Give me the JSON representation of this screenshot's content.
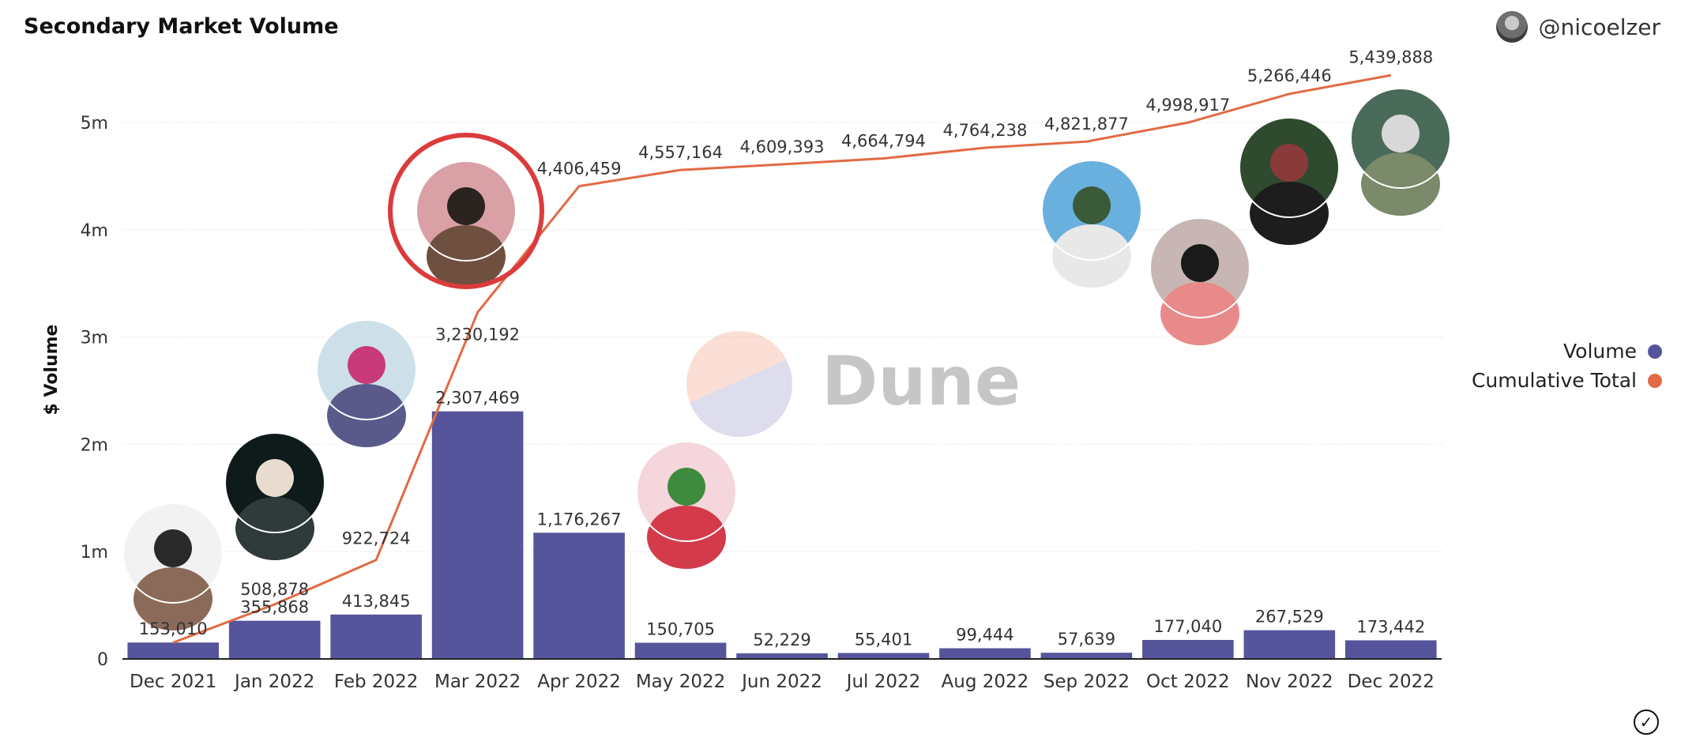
{
  "header": {
    "title": "Secondary Market Volume",
    "author": "@nicoelzer"
  },
  "watermark": "Dune",
  "legend": {
    "volume": "Volume",
    "cumulative": "Cumulative Total"
  },
  "colors": {
    "volume": "#56549a",
    "cumulative": "#e26a45",
    "highlight": "#dc3b3b"
  },
  "artist_photos": [
    {
      "month": "Dec 2021",
      "icon": "artist-photo-curly-hair"
    },
    {
      "month": "Jan 2022",
      "icon": "artist-photo-dark-portrait"
    },
    {
      "month": "Feb 2022",
      "icon": "artist-photo-cyclist-art"
    },
    {
      "month": "Mar 2022",
      "icon": "artist-photo-sunglasses",
      "highlighted": true
    },
    {
      "month": "May 2022",
      "icon": "artist-photo-cartoon-art"
    },
    {
      "month": "Sep 2022",
      "icon": "artist-photo-plaid-shirt"
    },
    {
      "month": "Oct 2022",
      "icon": "artist-photo-pink-cheeks"
    },
    {
      "month": "Nov 2022",
      "icon": "artist-photo-braids"
    },
    {
      "month": "Dec 2022",
      "icon": "artist-photo-duo"
    }
  ],
  "chart_data": {
    "type": "bar",
    "title": "Secondary Market Volume",
    "xlabel": "",
    "ylabel": "$ Volume",
    "ylim": [
      0,
      5500000
    ],
    "yticks": [
      {
        "value": 0,
        "label": "0"
      },
      {
        "value": 1000000,
        "label": "1m"
      },
      {
        "value": 2000000,
        "label": "2m"
      },
      {
        "value": 3000000,
        "label": "3m"
      },
      {
        "value": 4000000,
        "label": "4m"
      },
      {
        "value": 5000000,
        "label": "5m"
      }
    ],
    "grid": true,
    "legend_position": "right",
    "categories": [
      "Dec 2021",
      "Jan 2022",
      "Feb 2022",
      "Mar 2022",
      "Apr 2022",
      "May 2022",
      "Jun 2022",
      "Jul 2022",
      "Aug 2022",
      "Sep 2022",
      "Oct 2022",
      "Nov 2022",
      "Dec 2022"
    ],
    "series": [
      {
        "name": "Volume",
        "type": "bar",
        "values": [
          153010,
          355868,
          413845,
          2307469,
          1176267,
          150705,
          52229,
          55401,
          99444,
          57639,
          177040,
          267529,
          173442
        ],
        "labels": [
          "153,010",
          "355,868",
          "413,845",
          "2,307,469",
          "1,176,267",
          "150,705",
          "52,229",
          "55,401",
          "99,444",
          "57,639",
          "177,040",
          "267,529",
          "173,442"
        ]
      },
      {
        "name": "Cumulative Total",
        "type": "line",
        "values": [
          153010,
          508878,
          922724,
          3230192,
          4406459,
          4557164,
          4609393,
          4664794,
          4764238,
          4821877,
          4998917,
          5266446,
          5439888
        ],
        "labels": [
          "153,010",
          "508,878",
          "922,724",
          "3,230,192",
          "4,406,459",
          "4,557,164",
          "4,609,393",
          "4,664,794",
          "4,764,238",
          "4,821,877",
          "4,998,917",
          "5,266,446",
          "5,439,888"
        ]
      }
    ]
  }
}
